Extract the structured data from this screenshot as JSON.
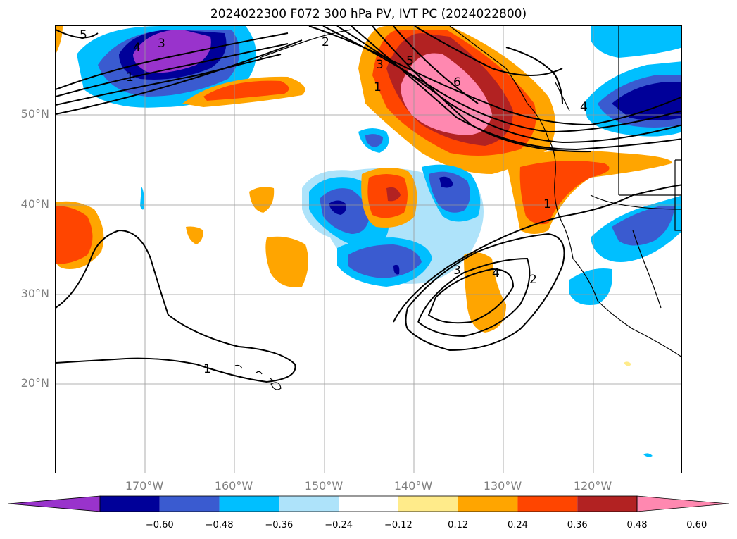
{
  "title": "2024022300 F072 300 hPa PV, IVT PC (2024022800)",
  "lat_labels": [
    "50°N",
    "40°N",
    "30°N",
    "20°N"
  ],
  "lon_labels": [
    "170°W",
    "160°W",
    "150°W",
    "140°W",
    "130°W",
    "120°W"
  ],
  "colorbar": {
    "ticks": [
      "−0.60",
      "−0.48",
      "−0.36",
      "−0.24",
      "−0.12",
      "0.12",
      "0.24",
      "0.36",
      "0.48",
      "0.60"
    ],
    "colors": [
      "#9933cc",
      "#000099",
      "#3a5bd0",
      "#00bfff",
      "#aee3fa",
      "#ffffff",
      "#ffeb8a",
      "#ffa500",
      "#ff4500",
      "#b22222",
      "#ff88b0"
    ]
  },
  "contour_labels": [
    "5",
    "3",
    "4",
    "1",
    "2",
    "3",
    "5",
    "6",
    "1",
    "4",
    "1",
    "3",
    "4",
    "2",
    "1"
  ],
  "palette": {
    "purple": "#9933cc",
    "navy": "#000099",
    "royal": "#3a5bd0",
    "sky": "#00bfff",
    "pale_blue": "#aee3fa",
    "pale_yellow": "#ffeb8a",
    "orange": "#ffa500",
    "red_orange": "#ff4500",
    "dark_red": "#b22222",
    "pink": "#ff88b0"
  }
}
